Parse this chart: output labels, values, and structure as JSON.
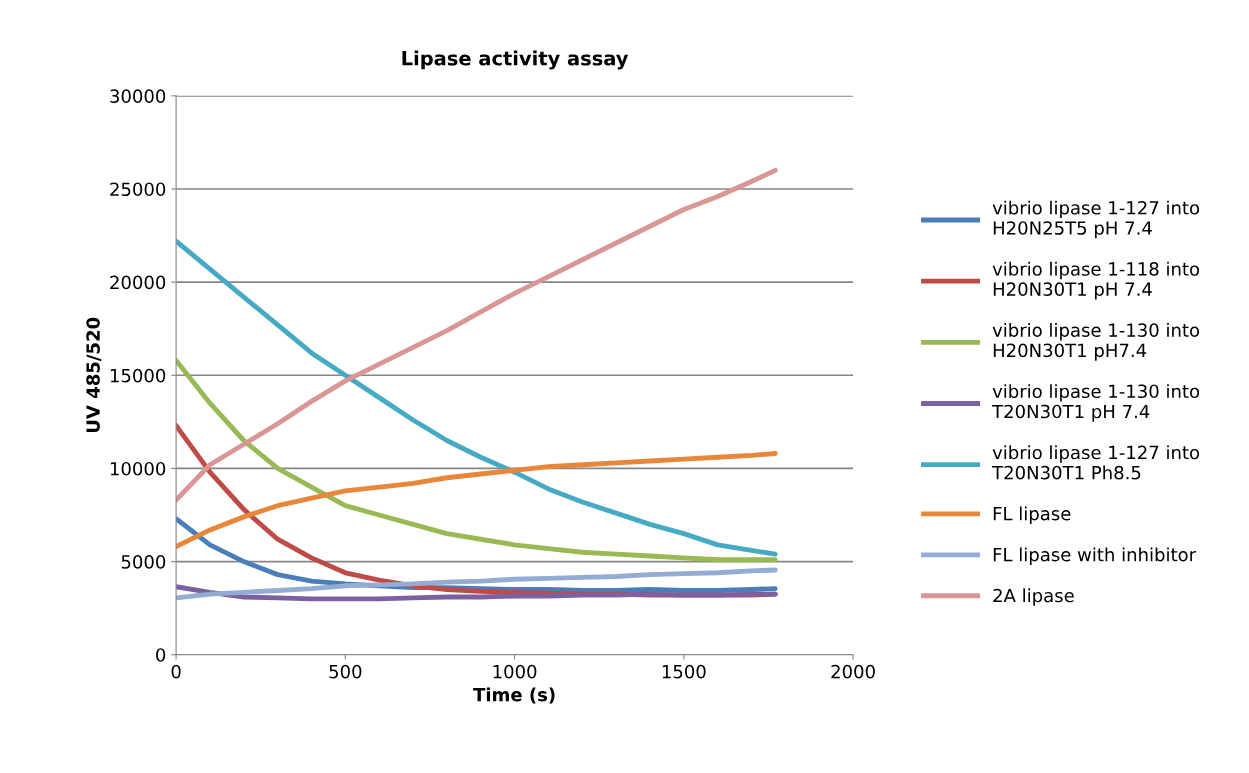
{
  "chart_data": {
    "type": "line",
    "title": "Lipase activity assay",
    "xlabel": "Time (s)",
    "ylabel": "UV 485/520",
    "x": [
      0,
      100,
      200,
      300,
      400,
      500,
      600,
      700,
      800,
      900,
      1000,
      1100,
      1200,
      1300,
      1400,
      1500,
      1600,
      1700,
      1770
    ],
    "series": [
      {
        "name": "vibrio lipase 1-127 into H20N25T5 pH 7.4",
        "color": "#4a7ebb",
        "values": [
          7300,
          5900,
          5000,
          4300,
          3950,
          3800,
          3700,
          3600,
          3600,
          3550,
          3500,
          3500,
          3450,
          3450,
          3500,
          3450,
          3450,
          3500,
          3550
        ]
      },
      {
        "name": "vibrio lipase 1-118 into H20N30T1 pH 7.4",
        "color": "#be4b48",
        "values": [
          12300,
          9800,
          7800,
          6200,
          5200,
          4400,
          4000,
          3700,
          3500,
          3400,
          3350,
          3300,
          3250,
          3250,
          3200,
          3200,
          3200,
          3200,
          3250
        ]
      },
      {
        "name": "vibrio lipase 1-130 into H20N30T1 pH7.4",
        "color": "#98b954",
        "values": [
          15800,
          13500,
          11500,
          10000,
          9000,
          8000,
          7500,
          7000,
          6500,
          6200,
          5900,
          5700,
          5500,
          5400,
          5300,
          5200,
          5100,
          5100,
          5100
        ]
      },
      {
        "name": "vibrio lipase 1-130 into T20N30T1 pH 7.4",
        "color": "#7d60a0",
        "values": [
          3650,
          3350,
          3100,
          3050,
          3000,
          3000,
          3000,
          3050,
          3100,
          3100,
          3150,
          3150,
          3200,
          3200,
          3250,
          3200,
          3200,
          3250,
          3250
        ]
      },
      {
        "name": "vibrio lipase 1-127 into T20N30T1 Ph8.5",
        "color": "#46aac5",
        "values": [
          22200,
          20700,
          19200,
          17700,
          16200,
          15000,
          13800,
          12600,
          11500,
          10600,
          9800,
          8900,
          8200,
          7600,
          7000,
          6500,
          5900,
          5600,
          5400
        ]
      },
      {
        "name": "FL lipase",
        "color": "#e8873a",
        "values": [
          5800,
          6700,
          7400,
          8000,
          8400,
          8800,
          9000,
          9200,
          9500,
          9700,
          9900,
          10100,
          10200,
          10300,
          10400,
          10500,
          10600,
          10700,
          10800
        ]
      },
      {
        "name": "FL lipase with inhibitor",
        "color": "#94abd5",
        "values": [
          3050,
          3250,
          3350,
          3450,
          3550,
          3700,
          3750,
          3800,
          3900,
          3950,
          4050,
          4100,
          4150,
          4200,
          4300,
          4350,
          4400,
          4500,
          4550
        ]
      },
      {
        "name": "2A lipase",
        "color": "#d99694",
        "values": [
          8300,
          10200,
          11300,
          12400,
          13600,
          14700,
          15600,
          16500,
          17400,
          18400,
          19400,
          20300,
          21200,
          22100,
          23000,
          23900,
          24600,
          25400,
          26000
        ]
      }
    ],
    "xlim": [
      0,
      2000
    ],
    "xticks": [
      0,
      500,
      1000,
      1500,
      2000
    ],
    "ylim": [
      0,
      30000
    ],
    "yticks": [
      0,
      5000,
      10000,
      15000,
      20000,
      25000,
      30000
    ],
    "grid": "y",
    "legend": "right",
    "marker": "none",
    "line_style": "solid"
  }
}
